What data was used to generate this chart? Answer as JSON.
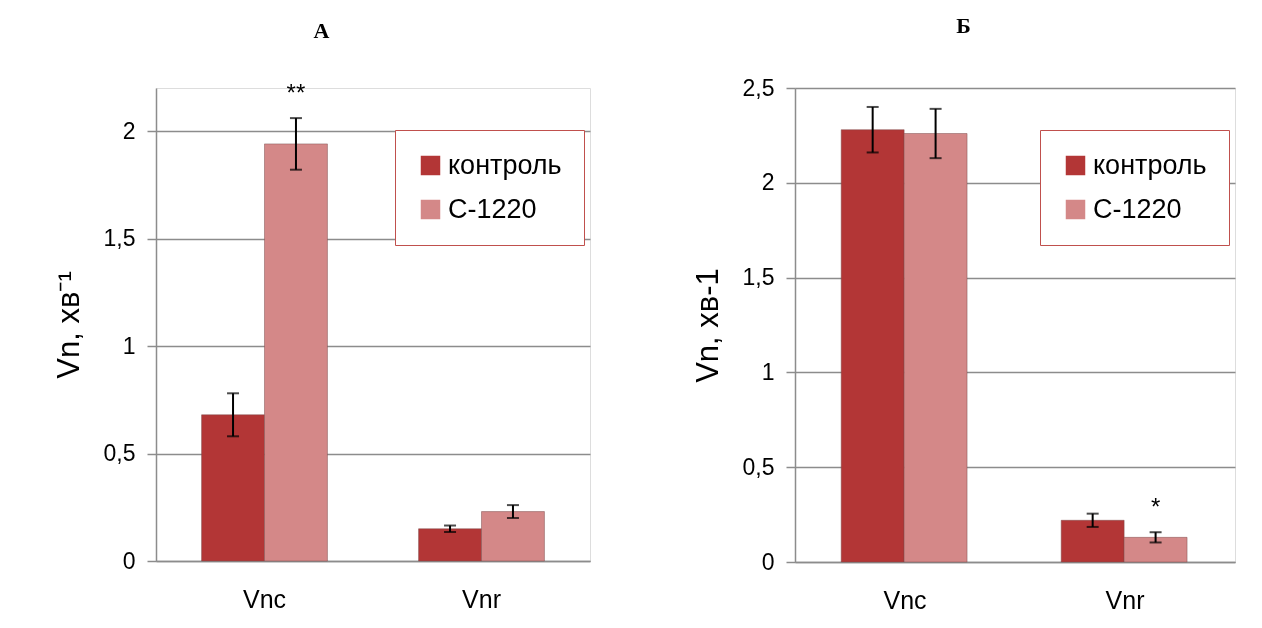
{
  "chart_data": [
    {
      "type": "bar",
      "title": "А",
      "ylabel": "Vn, хв⁻¹",
      "categories": [
        "Vnc",
        "Vnr"
      ],
      "series": [
        {
          "name": "контроль",
          "color": "#b33636",
          "values": [
            0.68,
            0.15
          ],
          "errors": [
            0.1,
            0.015
          ]
        },
        {
          "name": "С-1220",
          "color": "#d48888",
          "values": [
            1.94,
            0.23
          ],
          "errors": [
            0.12,
            0.03
          ]
        }
      ],
      "ylim": [
        0,
        2.2
      ],
      "yticks": [
        0,
        {
          "value": 0.5,
          "label": "0,5"
        },
        1,
        {
          "value": 1.5,
          "label": "1,5"
        },
        2
      ],
      "grid": "y",
      "legend": "top right",
      "annotations": [
        {
          "text": "**",
          "x": "Vnc",
          "y": 1.94
        }
      ]
    },
    {
      "type": "bar",
      "title": "Б",
      "ylabel": "Vn, хв-1",
      "categories": [
        "Vnc",
        "Vnr"
      ],
      "series": [
        {
          "name": "контроль",
          "color": "#b33636",
          "values": [
            2.28,
            0.22
          ],
          "errors": [
            0.12,
            0.035
          ]
        },
        {
          "name": "С-1220",
          "color": "#d48888",
          "values": [
            2.26,
            0.13
          ],
          "errors": [
            0.13,
            0.027
          ]
        }
      ],
      "ylim": [
        0,
        2.5
      ],
      "yticks": [
        0,
        {
          "value": 0.5,
          "label": "0,5"
        },
        1,
        {
          "value": 1.5,
          "label": "1,5"
        },
        2,
        {
          "value": 2.5,
          "label": "2,5"
        }
      ],
      "grid": "y",
      "legend": "top right",
      "annotations": [
        {
          "text": "*",
          "x": "Vnr",
          "y": 0.13
        }
      ]
    }
  ]
}
